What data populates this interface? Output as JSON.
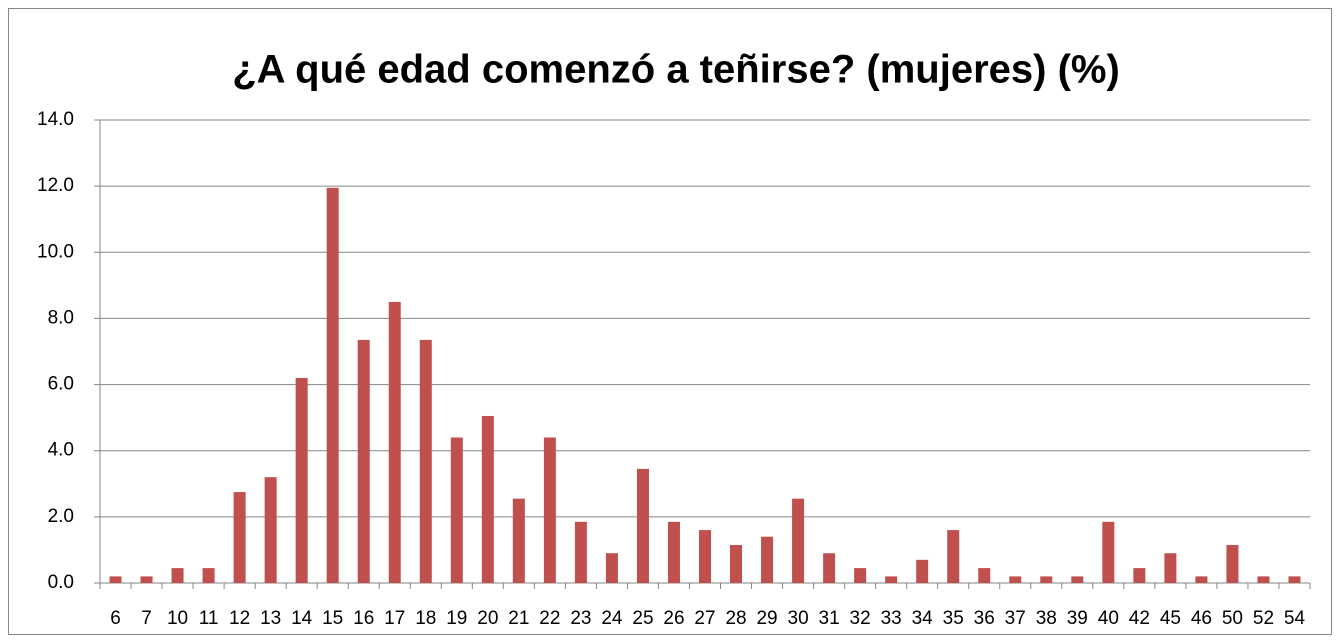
{
  "chart_data": {
    "type": "bar",
    "title": "¿A qué edad comenzó a teñirse? (mujeres) (%)",
    "categories": [
      "6",
      "7",
      "10",
      "11",
      "12",
      "13",
      "14",
      "15",
      "16",
      "17",
      "18",
      "19",
      "20",
      "21",
      "22",
      "23",
      "24",
      "25",
      "26",
      "27",
      "28",
      "29",
      "30",
      "31",
      "32",
      "33",
      "34",
      "35",
      "36",
      "37",
      "38",
      "39",
      "40",
      "42",
      "45",
      "46",
      "50",
      "52",
      "54"
    ],
    "values": [
      0.2,
      0.2,
      0.45,
      0.45,
      2.75,
      3.2,
      6.2,
      11.95,
      7.35,
      8.5,
      7.35,
      4.4,
      5.05,
      2.55,
      4.4,
      1.85,
      0.9,
      3.45,
      1.85,
      1.6,
      1.15,
      1.4,
      2.55,
      0.9,
      0.45,
      0.2,
      0.7,
      1.6,
      0.45,
      0.2,
      0.2,
      0.2,
      1.85,
      0.45,
      0.9,
      0.2,
      1.15,
      0.2,
      0.2
    ],
    "color": "#c0504d",
    "ylim": [
      0,
      14
    ],
    "yticks": [
      {
        "value": 0,
        "label": "0.0"
      },
      {
        "value": 2,
        "label": "2.0"
      },
      {
        "value": 4,
        "label": "4.0"
      },
      {
        "value": 6,
        "label": "6.0"
      },
      {
        "value": 8,
        "label": "8.0"
      },
      {
        "value": 10,
        "label": "10.0"
      },
      {
        "value": 12,
        "label": "12.0"
      },
      {
        "value": 14,
        "label": "14.0"
      }
    ],
    "grid": true
  }
}
